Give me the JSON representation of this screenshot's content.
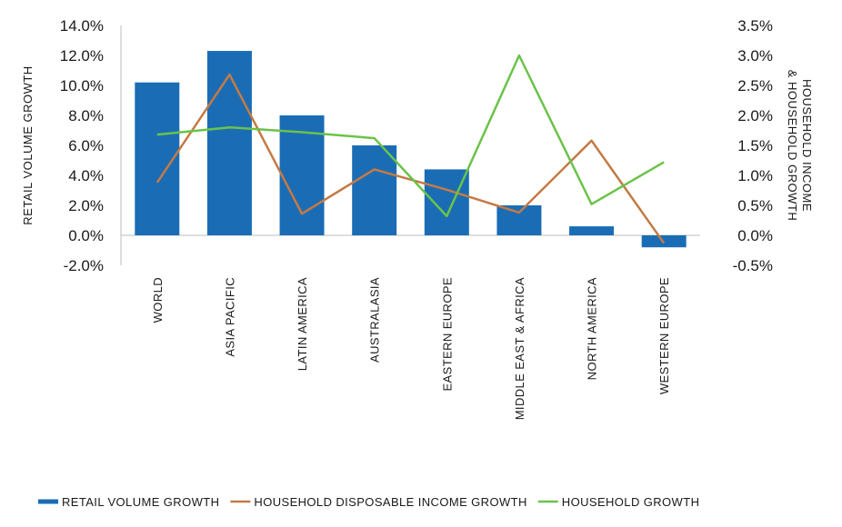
{
  "chart_data": {
    "type": "bar",
    "categories": [
      "WORLD",
      "ASIA PACIFIC",
      "LATIN AMERICA",
      "AUSTRALASIA",
      "EASTERN EUROPE",
      "MIDDLE EAST & AFRICA",
      "NORTH AMERICA",
      "WESTERN EUROPE"
    ],
    "series": [
      {
        "name": "RETAIL VOLUME GROWTH",
        "type": "bar",
        "axis": "left",
        "color": "#1a6db5",
        "values": [
          10.2,
          12.3,
          8.0,
          6.0,
          4.4,
          2.0,
          0.6,
          -0.8
        ]
      },
      {
        "name": "HOUSEHOLD DISPOSABLE INCOME GROWTH",
        "type": "line",
        "axis": "right",
        "color": "#c47a45",
        "values": [
          0.88,
          2.68,
          0.36,
          1.1,
          0.76,
          0.38,
          1.58,
          -0.13
        ]
      },
      {
        "name": "HOUSEHOLD GROWTH",
        "type": "line",
        "axis": "right",
        "color": "#6cc24a",
        "values": [
          1.68,
          1.8,
          1.72,
          1.62,
          0.32,
          3.0,
          0.52,
          1.22
        ]
      }
    ],
    "left_axis": {
      "label": "RETAIL VOLUME GROWTH",
      "ylim": [
        -2.0,
        14.0
      ],
      "ticks": [
        "14.0%",
        "12.0%",
        "10.0%",
        "8.0%",
        "6.0%",
        "4.0%",
        "2.0%",
        "0.0%",
        "-2.0%"
      ]
    },
    "right_axis": {
      "label_line1": "HOUSEHOLD INCOME",
      "label_line2": "& HOUSEHOLD GROWTH",
      "ylim": [
        -0.5,
        3.5
      ],
      "ticks": [
        "3.5%",
        "3.0%",
        "2.5%",
        "2.0%",
        "1.5%",
        "1.0%",
        "0.5%",
        "0.0%",
        "-0.5%"
      ]
    },
    "legend_position": "bottom"
  }
}
